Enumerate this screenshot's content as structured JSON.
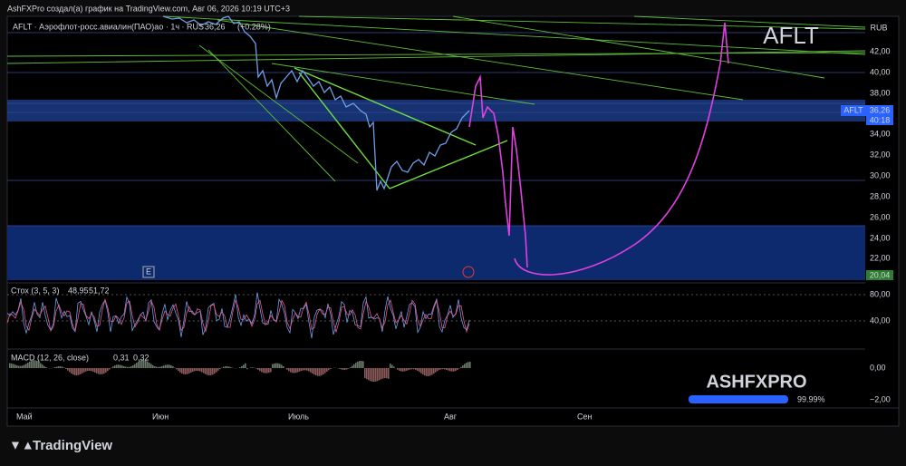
{
  "header": {
    "caption": "AshFXPro создал(а) график на TradingView.com, Авг 06, 2026 10:19 UTC+3"
  },
  "legend": {
    "symbol": "AFLT · Аэрофлот-росс.авиалин(ПАО)ао · 1ч · RUS",
    "price": "36,26",
    "change": "(+0.28%)"
  },
  "watermark": "AFLT",
  "price_axis": {
    "currency": "RUB",
    "labels": [
      "42,00",
      "40,00",
      "38,00",
      "34,00",
      "32,00",
      "30,00",
      "28,00",
      "26,00",
      "24,00",
      "22,00"
    ]
  },
  "price_tag": {
    "symbol": "AFLT",
    "price": "36,26",
    "countdown": "40:18",
    "level": "20,04"
  },
  "markers": {
    "earnings": "E"
  },
  "stochastic": {
    "title": "Стох (3, 5, 3)",
    "k": "48,95",
    "d": "51,72",
    "axis": [
      "80,00",
      "40,00"
    ]
  },
  "macd": {
    "title": "MACD (12, 26, close)",
    "macd": "0,31",
    "signal": "0,32",
    "axis": [
      "0,00",
      "−2,00"
    ]
  },
  "time_axis": [
    "Май",
    "Июн",
    "Июль",
    "Авг",
    "Сен"
  ],
  "brand": {
    "name": "ASHFXPRO",
    "progress": "99.99%"
  },
  "footer": {
    "logo": "TradingView"
  }
}
